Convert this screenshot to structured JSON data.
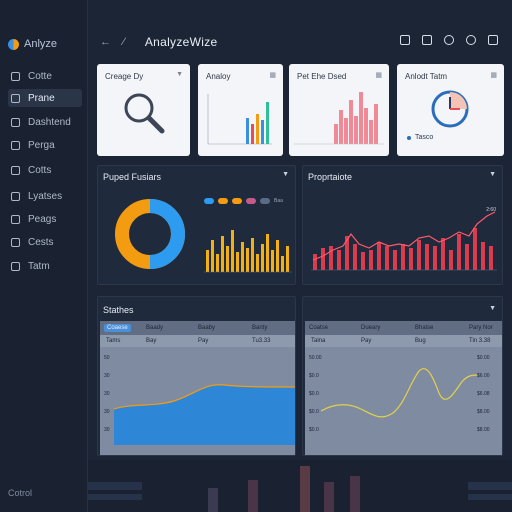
{
  "brand": {
    "name": "Anlyze"
  },
  "sidebar": {
    "items": [
      {
        "label": "Cotte",
        "icon": "grid-icon"
      },
      {
        "label": "Prane",
        "icon": "folder-icon"
      },
      {
        "label": "Dashtend",
        "icon": "document-icon"
      },
      {
        "label": "Perga",
        "icon": "user-icon"
      },
      {
        "label": "Cotts",
        "icon": "chat-icon"
      },
      {
        "label": "Lyatses",
        "icon": "shield-icon"
      },
      {
        "label": "Peags",
        "icon": "file-icon"
      },
      {
        "label": "Cests",
        "icon": "list-icon"
      },
      {
        "label": "Tatm",
        "icon": "clock-icon"
      }
    ],
    "footer": "Cotrol"
  },
  "header": {
    "title": "AnalyzeWize"
  },
  "cards": [
    {
      "title": "Creage Dy"
    },
    {
      "title": "Analoy"
    },
    {
      "title": "Pet Ehe Dsed"
    },
    {
      "title": "Anlodt Tatm",
      "caption": "Tasco"
    }
  ],
  "panels": {
    "features": {
      "title": "Puped Fusiars",
      "legend_label": "Baa"
    },
    "properties": {
      "title": "Proprtaiote",
      "peak_label": "2:60"
    },
    "statistics": {
      "title": "Stathes"
    }
  },
  "table_left": {
    "headers": [
      "Coaese",
      "Baady",
      "Baaby",
      "Banty"
    ],
    "subrow": [
      "Tams",
      "Bay",
      "Pay",
      "Tu3.33"
    ],
    "ylabels": [
      "50",
      "30",
      "30",
      "30",
      "30"
    ]
  },
  "table_right": {
    "headers": [
      "Coatse",
      "Dueary",
      "Bhalse",
      "Pary Nor"
    ],
    "subrow": [
      "Talna",
      "Pay",
      "Bug",
      "Tin 3.38"
    ],
    "ylabels_left": [
      "50.00",
      "$0.0",
      "$0.0",
      "$0.0",
      "$0.0"
    ],
    "ylabels_right": [
      "$0.00",
      "$6.00",
      "$6.08",
      "$8.00",
      "$8.00"
    ]
  },
  "colors": {
    "accent": "#3a8fe0",
    "orange": "#f39c12",
    "red": "#e84c5a",
    "yellow": "#d4c23a"
  }
}
